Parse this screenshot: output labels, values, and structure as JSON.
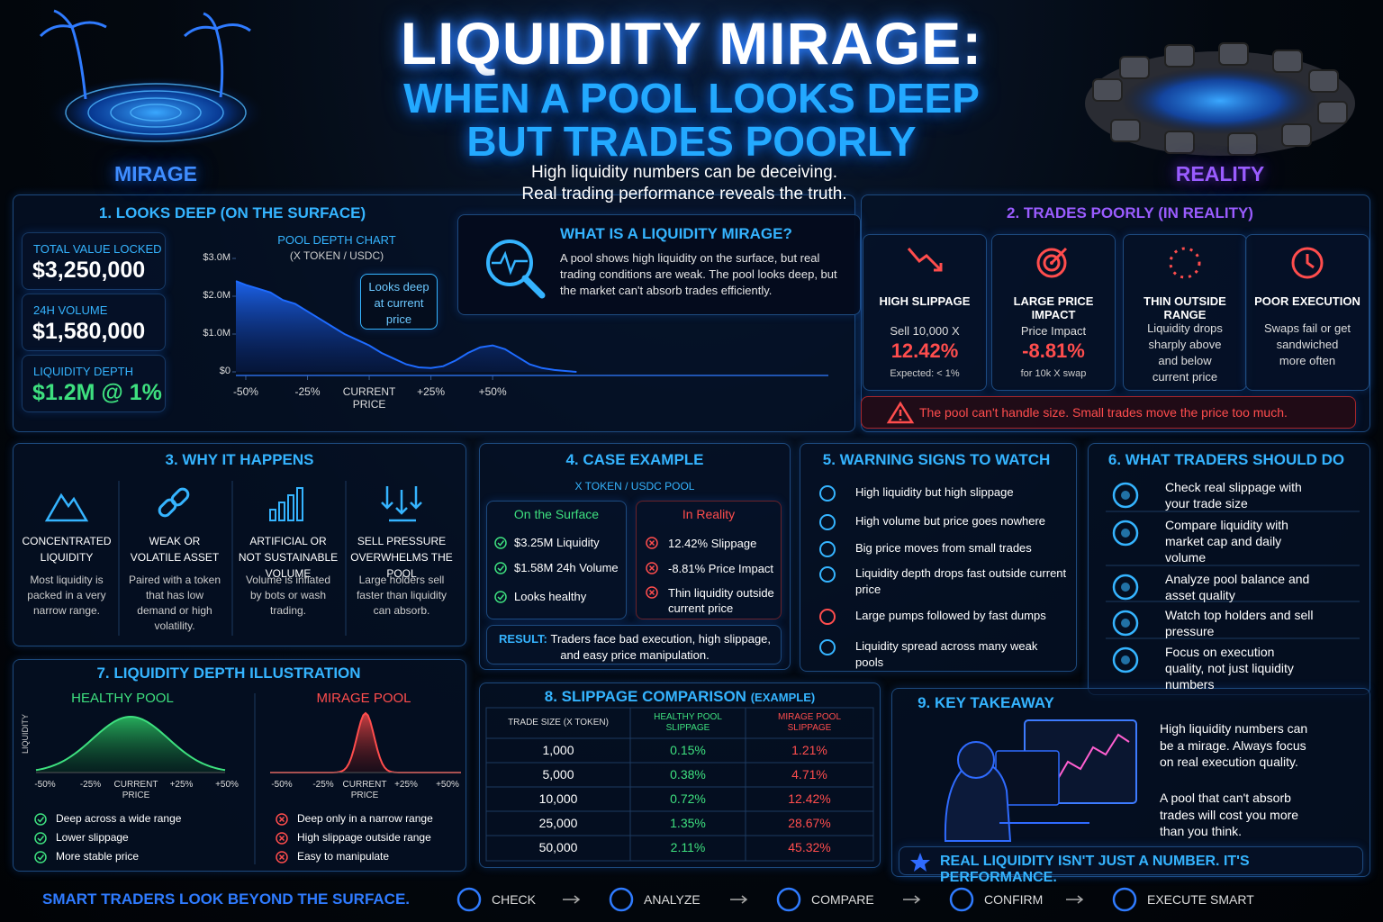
{
  "header": {
    "title": "LIQUIDITY MIRAGE:",
    "subtitle_1": "WHEN A POOL LOOKS DEEP",
    "subtitle_2": "BUT TRADES POORLY",
    "tagline_1": "High liquidity numbers can be deceiving.",
    "tagline_2": "Real trading performance reveals the truth.",
    "mirage_label": "MIRAGE",
    "reality_label": "REALITY"
  },
  "looks_deep": {
    "title": "1. LOOKS DEEP (ON THE SURFACE)",
    "stats": [
      {
        "label": "TOTAL VALUE LOCKED",
        "value": "$3,250,000"
      },
      {
        "label": "24H VOLUME",
        "value": "$1,580,000"
      },
      {
        "label": "LIQUIDITY DEPTH",
        "value": "$1.2M @ 1%"
      }
    ],
    "depth_chart": {
      "type": "area",
      "title": "POOL DEPTH CHART",
      "subtitle": "(X TOKEN / USDC)",
      "annotation": "Looks deep at current price",
      "color": "#1e6bff",
      "x": [
        -54,
        -50,
        -45,
        -40,
        -35,
        -30,
        -25,
        -20,
        -15,
        -10,
        -5,
        0,
        5,
        10,
        15,
        20,
        25,
        30,
        35,
        40,
        45,
        50,
        55,
        60,
        65,
        70,
        75,
        80,
        84
      ],
      "values": [
        2.4,
        2.3,
        2.2,
        2.1,
        1.9,
        1.8,
        1.6,
        1.4,
        1.2,
        1.0,
        0.85,
        0.7,
        0.5,
        0.35,
        0.2,
        0.12,
        0.1,
        0.15,
        0.3,
        0.5,
        0.65,
        0.7,
        0.6,
        0.4,
        0.2,
        0.1,
        0.05,
        0.02,
        0
      ],
      "xlim": [
        -54,
        186
      ],
      "ylim": [
        0,
        3
      ],
      "yticks": [
        {
          "value": 3,
          "label": "$3.0M"
        },
        {
          "value": 2,
          "label": "$2.0M"
        },
        {
          "value": 1,
          "label": "$1.0M"
        },
        {
          "value": 0,
          "label": "$0"
        }
      ],
      "xticks": [
        {
          "value": -50,
          "label": "-50%"
        },
        {
          "value": -25,
          "label": "-25%"
        },
        {
          "value": 0,
          "label": "CURRENT PRICE"
        },
        {
          "value": 25,
          "label": "+25%"
        },
        {
          "value": 50,
          "label": "+50%"
        }
      ]
    }
  },
  "what_is": {
    "title": "WHAT IS A LIQUIDITY MIRAGE?",
    "text": "A pool shows high liquidity on the surface, but real trading conditions are weak. The pool looks deep, but the market can't absorb trades efficiently."
  },
  "trades_poorly": {
    "title": "2. TRADES POORLY (IN REALITY)",
    "cards": [
      {
        "title": "HIGH SLIPPAGE",
        "label": "Sell 10,000 X",
        "value": "12.42%",
        "note": "Expected: < 1%"
      },
      {
        "title": "LARGE PRICE IMPACT",
        "label": "Price Impact",
        "value": "-8.81%",
        "note": "for 10k X swap"
      },
      {
        "title": "THIN OUTSIDE RANGE",
        "text": "Liquidity drops sharply above and below current price"
      },
      {
        "title": "POOR EXECUTION",
        "text": "Swaps fail or get sandwiched more often"
      }
    ],
    "warning": "The pool can't handle size. Small trades move the price too much."
  },
  "why": {
    "title": "3. WHY IT HAPPENS",
    "items": [
      {
        "title": "CONCENTRATED LIQUIDITY",
        "text": "Most liquidity is packed in a very narrow range."
      },
      {
        "title": "WEAK OR VOLATILE ASSET",
        "text": "Paired with a token that has low demand or high volatility."
      },
      {
        "title": "ARTIFICIAL OR NOT SUSTAINABLE VOLUME",
        "text": "Volume is inflated by bots or wash trading."
      },
      {
        "title": "SELL PRESSURE OVERWHELMS THE POOL",
        "text": "Large holders sell faster than liquidity can absorb."
      }
    ]
  },
  "case": {
    "title": "4. CASE EXAMPLE",
    "pair": "X TOKEN / USDC POOL",
    "surface": {
      "title": "On the Surface",
      "items": [
        "$3.25M Liquidity",
        "$1.58M 24h Volume",
        "Looks healthy"
      ]
    },
    "reality": {
      "title": "In Reality",
      "items": [
        "12.42% Slippage",
        "-8.81% Price Impact",
        "Thin liquidity outside current price"
      ]
    },
    "result_label": "RESULT:",
    "result_text": "Traders face bad execution, high slippage, and easy price manipulation."
  },
  "warning_signs": {
    "title": "5. WARNING SIGNS TO WATCH",
    "items": [
      "High liquidity but high slippage",
      "High volume but price goes nowhere",
      "Big price moves from small trades",
      "Liquidity depth drops fast outside current price",
      "Large pumps followed by fast dumps",
      "Liquidity spread across many weak pools"
    ]
  },
  "what_to_do": {
    "title": "6. WHAT TRADERS SHOULD DO",
    "items": [
      "Check real slippage with your trade size",
      "Compare liquidity with market cap and daily volume",
      "Analyze pool balance and asset quality",
      "Watch top holders and sell pressure",
      "Focus on execution quality, not just liquidity numbers"
    ]
  },
  "depth_illustration": {
    "title": "7. LIQUIDITY DEPTH ILLUSTRATION",
    "y_label": "LIQUIDITY",
    "x_labels": [
      "-50%",
      "-25%",
      "CURRENT PRICE",
      "+25%",
      "+50%"
    ],
    "healthy": {
      "title": "HEALTHY POOL",
      "points": [
        "Deep across a wide range",
        "Lower slippage",
        "More stable price"
      ]
    },
    "mirage": {
      "title": "MIRAGE POOL",
      "points": [
        "Deep only in a narrow range",
        "High slippage outside range",
        "Easy to manipulate"
      ]
    }
  },
  "slippage": {
    "title": "8. SLIPPAGE COMPARISON",
    "title_note": "(EXAMPLE)",
    "headers": [
      "TRADE SIZE (X TOKEN)",
      "HEALTHY POOL SLIPPAGE",
      "MIRAGE POOL SLIPPAGE"
    ],
    "rows": [
      [
        "1,000",
        "0.15%",
        "1.21%"
      ],
      [
        "5,000",
        "0.38%",
        "4.71%"
      ],
      [
        "10,000",
        "0.72%",
        "12.42%"
      ],
      [
        "25,000",
        "1.35%",
        "28.67%"
      ],
      [
        "50,000",
        "2.11%",
        "45.32%"
      ]
    ]
  },
  "takeaway": {
    "title": "9. KEY TAKEAWAY",
    "paragraphs": [
      "High liquidity numbers can be a mirage. Always focus on real execution quality.",
      "A pool that can't absorb trades will cost you more than you think."
    ],
    "banner": "REAL LIQUIDITY ISN'T JUST A NUMBER. IT'S PERFORMANCE."
  },
  "footer": {
    "slogan": "SMART TRADERS LOOK BEYOND THE SURFACE.",
    "steps": [
      "CHECK",
      "ANALYZE",
      "COMPARE",
      "CONFIRM",
      "EXECUTE SMART"
    ]
  }
}
